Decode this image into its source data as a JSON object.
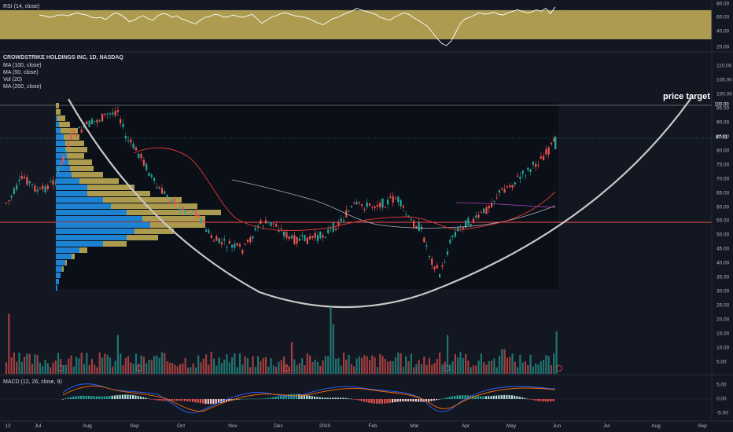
{
  "rsi": {
    "legend": "RSI (14, close)",
    "ticks": [
      "80.00",
      "60.00",
      "40.00",
      "20.00"
    ],
    "band_color": "#c9b458",
    "line_color": "#ffffff",
    "values": [
      63,
      62,
      60,
      61,
      63,
      63,
      62,
      64,
      66,
      64,
      63,
      60,
      59,
      60,
      57,
      62,
      66,
      64,
      60,
      54,
      56,
      60,
      62,
      58,
      56,
      62,
      65,
      64,
      60,
      62,
      58,
      56,
      53,
      51,
      56,
      60,
      61,
      64,
      63,
      60,
      61,
      63,
      61,
      60,
      62,
      64,
      58,
      52,
      56,
      60,
      62,
      65,
      66,
      64,
      62,
      61,
      60,
      58,
      55,
      52,
      50,
      54,
      58,
      60,
      63,
      66,
      68,
      72,
      70,
      68,
      66,
      64,
      60,
      58,
      56,
      60,
      63,
      66,
      64,
      60,
      56,
      52,
      48,
      40,
      32,
      25,
      22,
      28,
      40,
      52,
      58,
      60,
      63,
      66,
      64,
      65,
      67,
      64,
      63,
      66,
      68,
      70,
      68,
      66,
      67,
      70,
      68,
      72,
      65,
      74
    ]
  },
  "main": {
    "legend": {
      "title": "CROWDSTRIKE HOLDINGS INC, 1D, NASDAQ",
      "lines": [
        "MA (100, close)",
        "MA (50, close)",
        "Vol (20)",
        "MA (200, close)"
      ]
    },
    "annotation": "price target",
    "price_ticks": [
      "110.00",
      "105.00",
      "100.00",
      "95.00",
      "90.00",
      "85.00",
      "80.00",
      "75.00",
      "70.00",
      "65.00",
      "60.00",
      "55.00",
      "50.00",
      "45.00",
      "40.00",
      "35.00",
      "30.00",
      "25.00",
      "20.00",
      "15.00",
      "10.00",
      "5.00"
    ],
    "badges": [
      {
        "text": "100.00",
        "color": "#5d606b"
      },
      {
        "text": "87.91",
        "color": "#26a69a"
      }
    ],
    "up_color": "#26a69a",
    "down_color": "#ef5350"
  },
  "macd": {
    "legend": "MACD (12, 26, close, 9)",
    "ticks": [
      "5.00",
      "0.00",
      "-5.00"
    ]
  },
  "time_axis": [
    "12",
    "Jul",
    "Aug",
    "Sep",
    "Oct",
    "Nov",
    "Dec",
    "2020",
    "Feb",
    "Mar",
    "Apr",
    "May",
    "Jun",
    "Jul",
    "Aug",
    "Sep"
  ]
}
